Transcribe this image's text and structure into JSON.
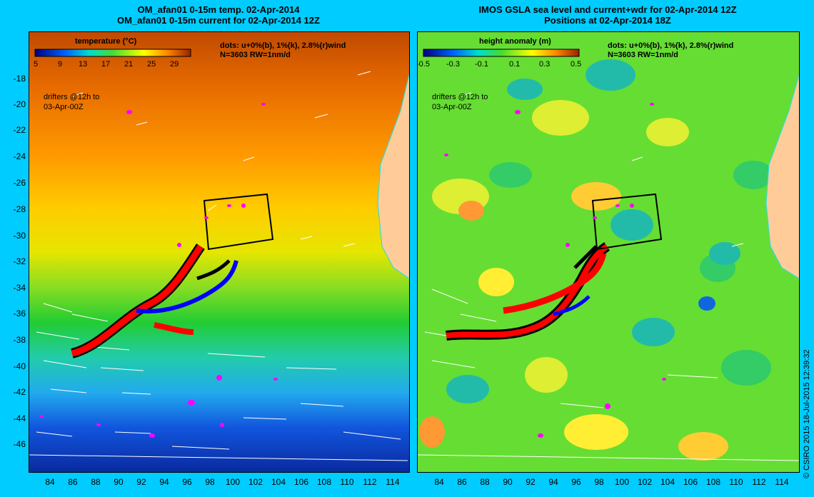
{
  "left": {
    "title_line1": "OM_afan01 0-15m temp. 02-Apr-2014",
    "title_line2": "OM_afan01 0-15m current for 02-Apr-2014 12Z",
    "colorbar_title": "temperature (°C)",
    "colorbar_ticks": [
      "5",
      "9",
      "13",
      "17",
      "21",
      "25",
      "29"
    ],
    "dots_legend": "dots: u+0%(b), 1%(k), 2.8%(r)wind",
    "dots_count": "N=3603 RW=1nm/d",
    "drifter_note_line1": "drifters @12h to",
    "drifter_note_line2": "03-Apr-00Z"
  },
  "right": {
    "title_line1": "IMOS GSLA sea level and current+wdr for 02-Apr-2014 12Z",
    "title_line2": "Positions at 02-Apr-2014 18Z",
    "colorbar_title": "height anomaly (m)",
    "colorbar_ticks": [
      "-0.5",
      "-0.3",
      "-0.1",
      "0.1",
      "0.3",
      "0.5"
    ],
    "dots_legend": "dots: u+0%(b), 1%(k), 2.8%(r)wind",
    "dots_count": "N=3603 RW=1nm/d",
    "drifter_note_line1": "drifters @12h to",
    "drifter_note_line2": "03-Apr-00Z"
  },
  "lat_ticks": [
    "-18",
    "-20",
    "-22",
    "-24",
    "-26",
    "-28",
    "-30",
    "-32",
    "-34",
    "-36",
    "-38",
    "-40",
    "-42",
    "-44",
    "-46"
  ],
  "lon_ticks": [
    "84",
    "86",
    "88",
    "90",
    "92",
    "94",
    "96",
    "98",
    "100",
    "102",
    "104",
    "106",
    "108",
    "110",
    "112",
    "114"
  ],
  "credit": "© CSIRO 2015   18-Jul-2015 12:39:32",
  "colors": {
    "background": "#00ccff",
    "land": "#ffcc99",
    "coast": "#33dddd",
    "blue_dots": "#0000ff",
    "black_dots": "#000000",
    "red_dots": "#ff0000",
    "magenta_blobs": "#ff00ff"
  }
}
